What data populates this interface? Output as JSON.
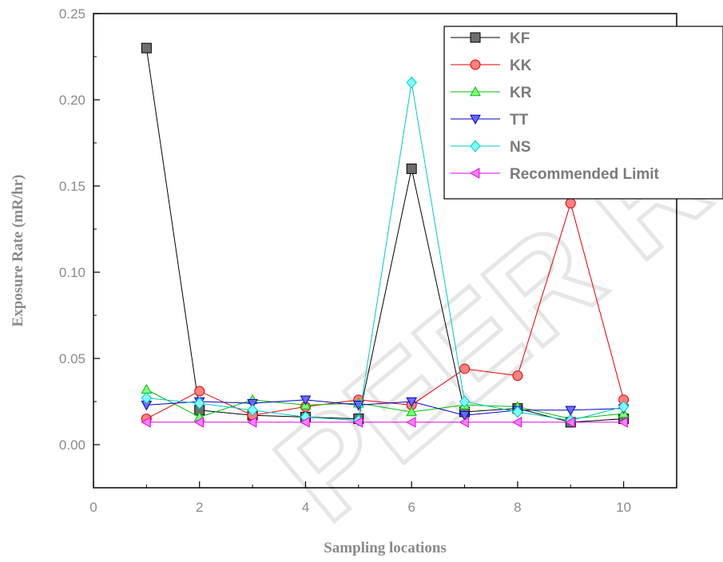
{
  "chart_data": {
    "type": "line",
    "title": "",
    "xlabel": "Sampling locations",
    "ylabel": "Exposure Rate (mR/hr)",
    "xlim": [
      0,
      11
    ],
    "ylim": [
      -0.025,
      0.25
    ],
    "x_ticks": [
      0,
      2,
      4,
      6,
      8,
      10
    ],
    "x_tick_labels": [
      "0",
      "2",
      "4",
      "6",
      "8",
      "10"
    ],
    "y_ticks": [
      0.0,
      0.05,
      0.1,
      0.15,
      0.2,
      0.25
    ],
    "y_tick_labels": [
      "0.00",
      "0.05",
      "0.10",
      "0.15",
      "0.20",
      "0.25"
    ],
    "grid": false,
    "legend_position": "top-right",
    "x": [
      1,
      2,
      3,
      4,
      5,
      6,
      7,
      8,
      9,
      10
    ],
    "series": [
      {
        "name": "KF",
        "color": "#000000",
        "fill": "#6e6e6e",
        "marker": "square",
        "values": [
          0.23,
          0.02,
          0.017,
          0.016,
          0.015,
          0.16,
          0.019,
          0.021,
          0.013,
          0.015
        ]
      },
      {
        "name": "KK",
        "color": "#e00000",
        "fill": "#ff8080",
        "marker": "circle",
        "values": [
          0.015,
          0.031,
          0.017,
          0.022,
          0.026,
          0.023,
          0.044,
          0.04,
          0.14,
          0.026
        ]
      },
      {
        "name": "KR",
        "color": "#00c000",
        "fill": "#80ff80",
        "marker": "triangle-up",
        "values": [
          0.032,
          0.016,
          0.026,
          0.023,
          0.024,
          0.019,
          0.023,
          0.022,
          0.015,
          0.018
        ]
      },
      {
        "name": "TT",
        "color": "#0000c0",
        "fill": "#6a6aff",
        "marker": "triangle-down",
        "values": [
          0.023,
          0.025,
          0.024,
          0.026,
          0.023,
          0.025,
          0.017,
          0.02,
          0.02,
          0.021
        ]
      },
      {
        "name": "NS",
        "color": "#00c8c8",
        "fill": "#80ffff",
        "marker": "diamond",
        "values": [
          0.027,
          0.024,
          0.02,
          0.016,
          0.014,
          0.21,
          0.025,
          0.019,
          0.014,
          0.022
        ]
      },
      {
        "name": "Recommended Limit",
        "color": "#e000e0",
        "fill": "#ff80ff",
        "marker": "triangle-left",
        "values": [
          0.013,
          0.013,
          0.013,
          0.013,
          0.013,
          0.013,
          0.013,
          0.013,
          0.013,
          0.013
        ]
      }
    ]
  }
}
